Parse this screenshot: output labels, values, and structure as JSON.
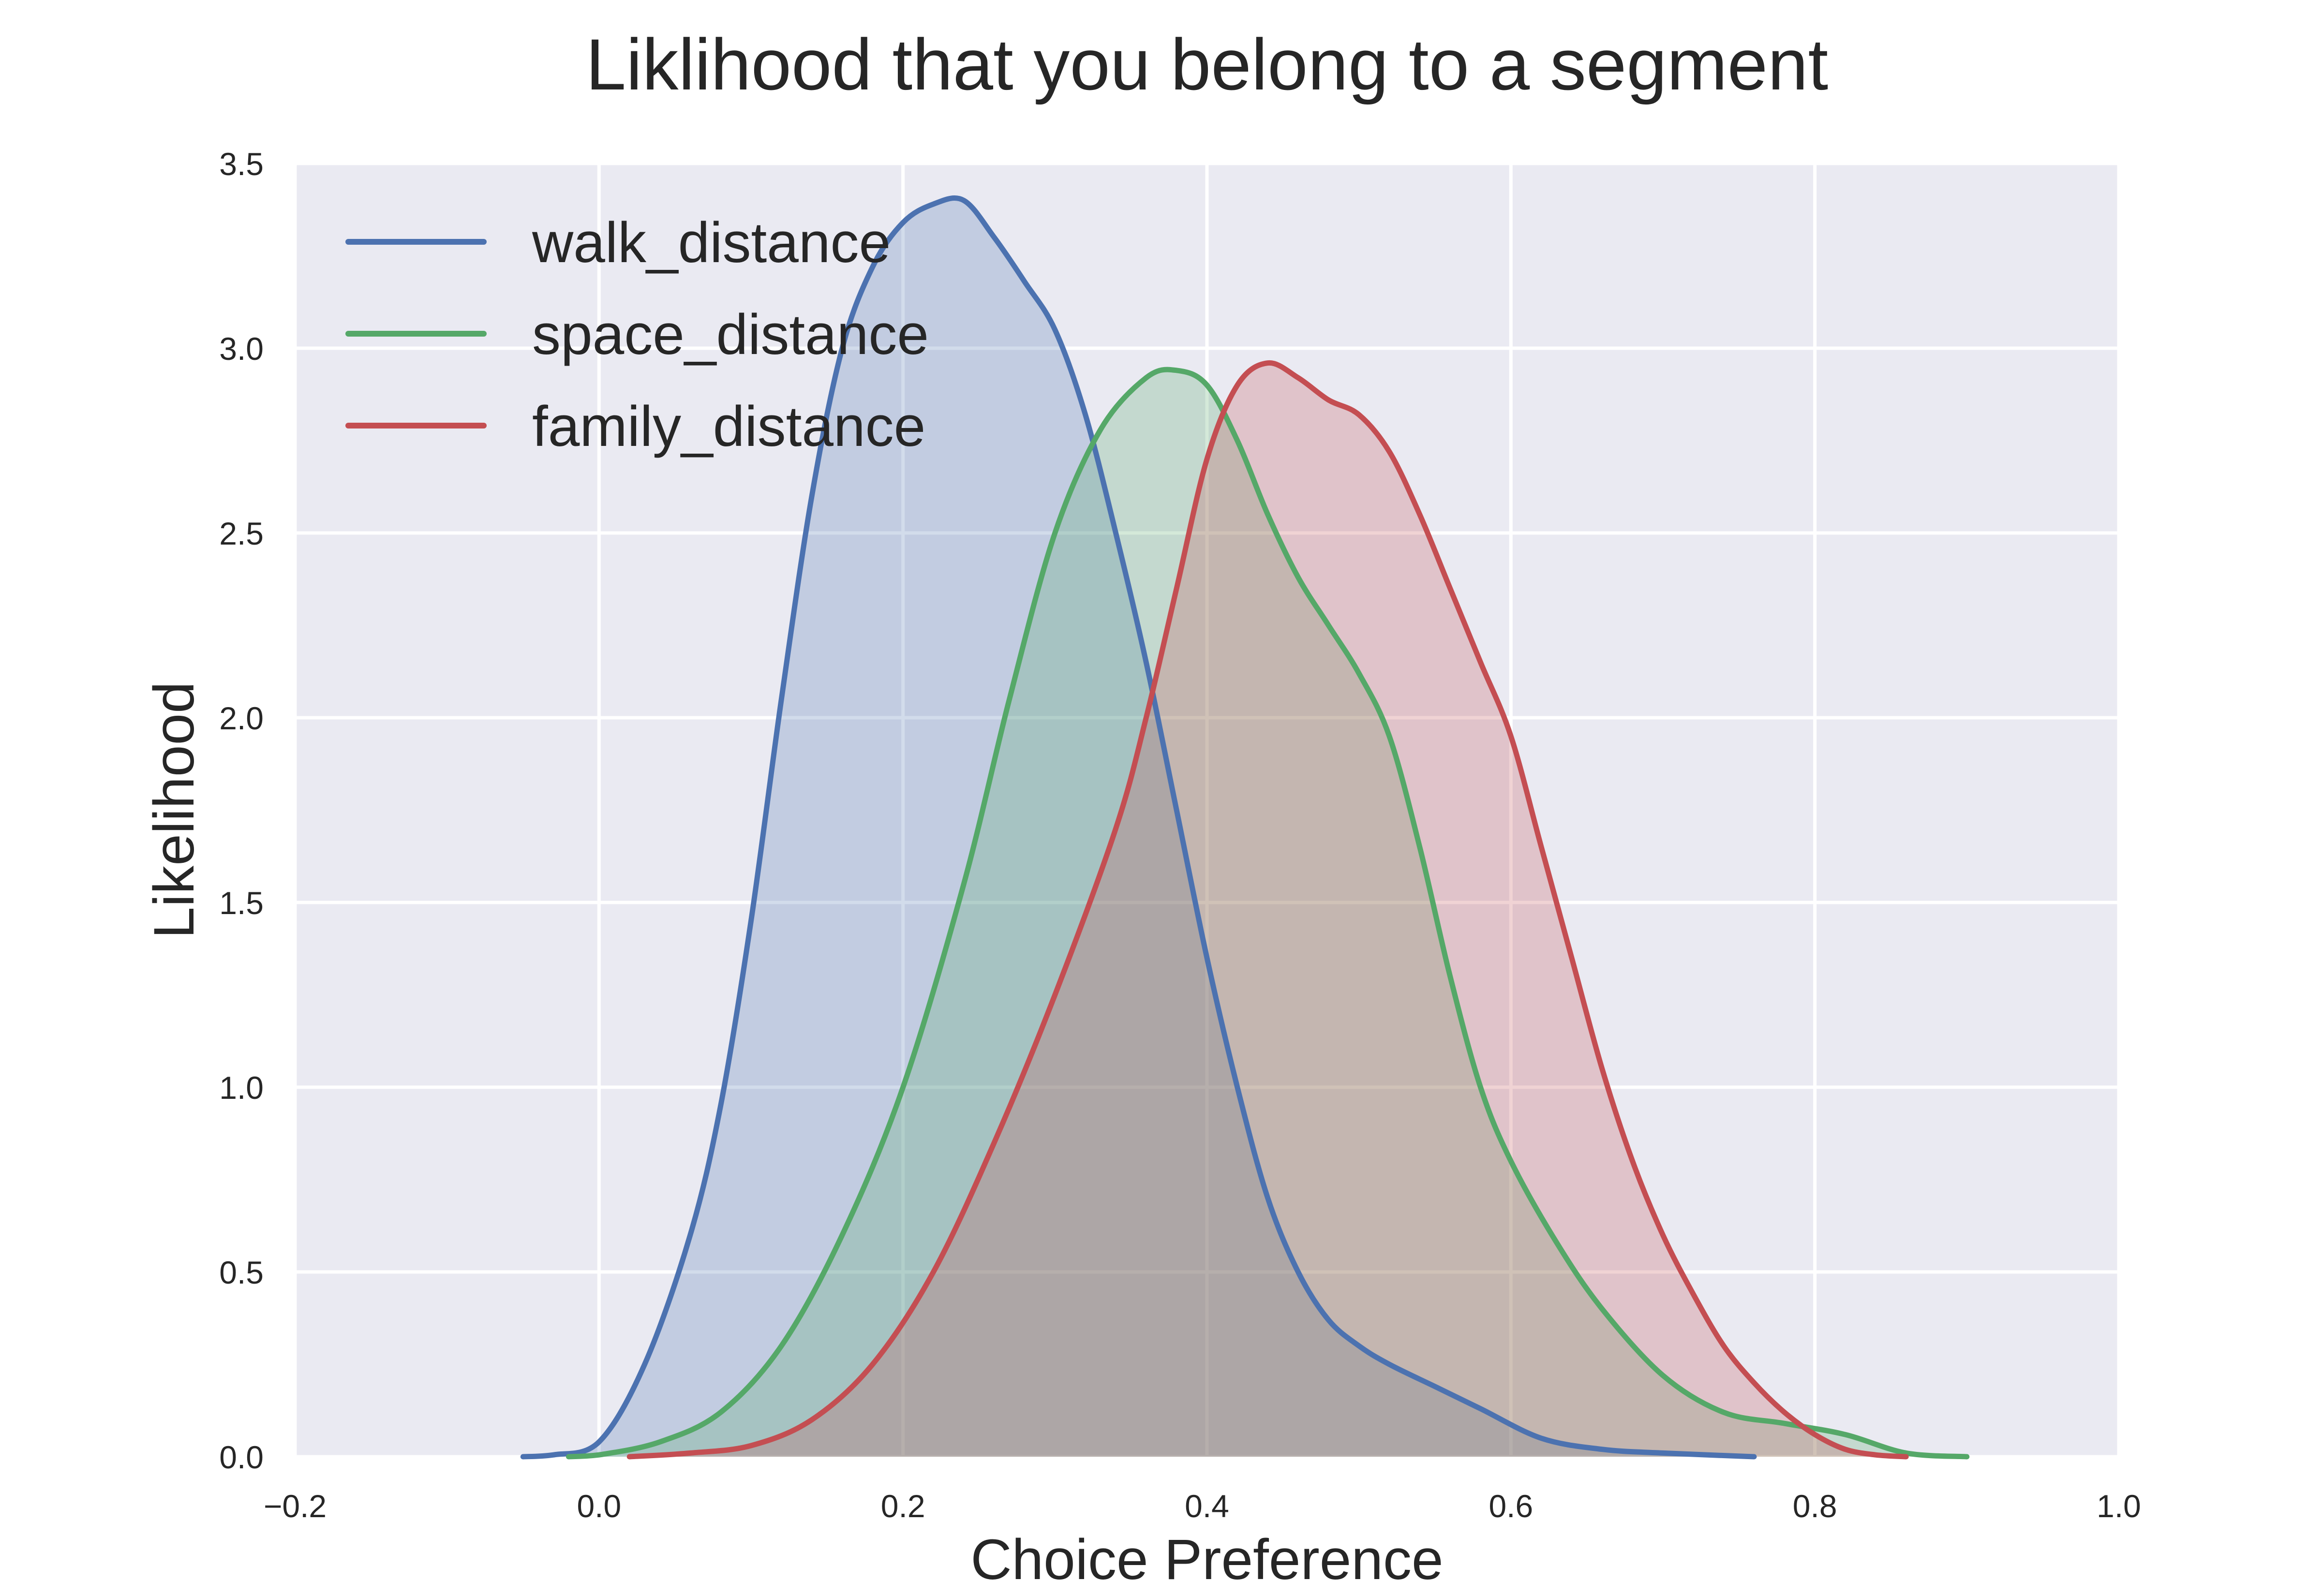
{
  "chart_data": {
    "type": "area",
    "title": "Liklihood that you belong to a segment",
    "xlabel": "Choice Preference",
    "ylabel": "Likelihood",
    "xlim": [
      -0.2,
      1.0
    ],
    "ylim": [
      0.0,
      3.5
    ],
    "x_ticks": [
      "−0.2",
      "0.0",
      "0.2",
      "0.4",
      "0.6",
      "0.8",
      "1.0"
    ],
    "y_ticks": [
      "0.0",
      "0.5",
      "1.0",
      "1.5",
      "2.0",
      "2.5",
      "3.0",
      "3.5"
    ],
    "grid": true,
    "legend_position": "top-left",
    "colors": {
      "plot_background": "#EAEAF2",
      "grid": "#FFFFFF"
    },
    "series": [
      {
        "name": "walk_distance",
        "color": "#4C72B0",
        "x": [
          -0.05,
          -0.03,
          0.0,
          0.03,
          0.06,
          0.08,
          0.1,
          0.12,
          0.14,
          0.16,
          0.18,
          0.2,
          0.22,
          0.24,
          0.26,
          0.28,
          0.3,
          0.32,
          0.34,
          0.36,
          0.38,
          0.4,
          0.42,
          0.44,
          0.46,
          0.48,
          0.5,
          0.52,
          0.55,
          0.58,
          0.62,
          0.66,
          0.7,
          0.76
        ],
        "y": [
          0.0,
          0.005,
          0.04,
          0.25,
          0.6,
          0.95,
          1.45,
          2.05,
          2.6,
          3.0,
          3.22,
          3.34,
          3.39,
          3.4,
          3.3,
          3.18,
          3.05,
          2.82,
          2.5,
          2.15,
          1.75,
          1.35,
          1.0,
          0.7,
          0.5,
          0.37,
          0.3,
          0.25,
          0.19,
          0.13,
          0.05,
          0.02,
          0.01,
          0.0
        ]
      },
      {
        "name": "space_distance",
        "color": "#55A868",
        "x": [
          -0.02,
          0.0,
          0.04,
          0.08,
          0.12,
          0.16,
          0.2,
          0.24,
          0.27,
          0.3,
          0.33,
          0.36,
          0.38,
          0.4,
          0.42,
          0.44,
          0.46,
          0.48,
          0.5,
          0.52,
          0.54,
          0.56,
          0.58,
          0.6,
          0.63,
          0.66,
          0.7,
          0.74,
          0.78,
          0.82,
          0.86,
          0.9
        ],
        "y": [
          0.0,
          0.005,
          0.04,
          0.12,
          0.3,
          0.6,
          1.0,
          1.55,
          2.05,
          2.5,
          2.78,
          2.92,
          2.94,
          2.9,
          2.75,
          2.55,
          2.38,
          2.25,
          2.12,
          1.95,
          1.65,
          1.3,
          1.0,
          0.8,
          0.58,
          0.4,
          0.22,
          0.12,
          0.09,
          0.06,
          0.01,
          0.0
        ]
      },
      {
        "name": "family_distance",
        "color": "#C44E52",
        "x": [
          0.02,
          0.06,
          0.1,
          0.14,
          0.18,
          0.22,
          0.26,
          0.3,
          0.34,
          0.36,
          0.38,
          0.4,
          0.42,
          0.44,
          0.46,
          0.48,
          0.5,
          0.52,
          0.54,
          0.56,
          0.58,
          0.6,
          0.62,
          0.64,
          0.66,
          0.68,
          0.7,
          0.72,
          0.74,
          0.76,
          0.78,
          0.8,
          0.82,
          0.84,
          0.86
        ],
        "y": [
          0.0,
          0.01,
          0.03,
          0.1,
          0.25,
          0.5,
          0.85,
          1.25,
          1.7,
          2.0,
          2.35,
          2.7,
          2.9,
          2.96,
          2.92,
          2.86,
          2.82,
          2.72,
          2.55,
          2.35,
          2.15,
          1.95,
          1.65,
          1.35,
          1.05,
          0.8,
          0.6,
          0.44,
          0.3,
          0.2,
          0.12,
          0.06,
          0.02,
          0.005,
          0.0
        ]
      }
    ]
  }
}
